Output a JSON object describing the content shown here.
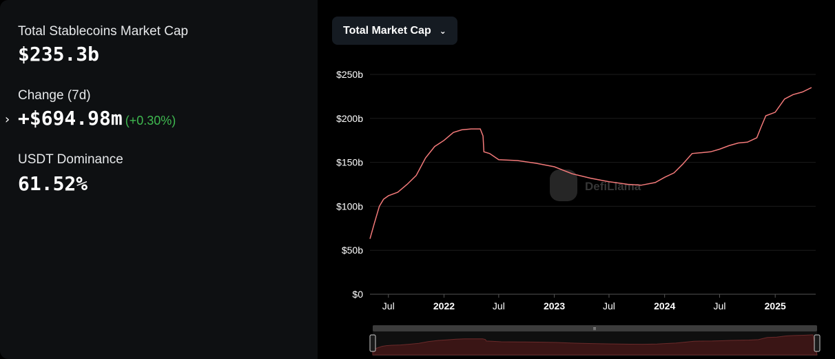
{
  "stats": {
    "market_cap_label": "Total Stablecoins Market Cap",
    "market_cap_value": "$235.3b",
    "change_label": "Change (7d)",
    "change_value": "+$694.98m",
    "change_pct": "(+0.30%)",
    "dominance_label": "USDT Dominance",
    "dominance_value": "61.52%"
  },
  "dropdown": {
    "label": "Total Market Cap"
  },
  "watermark": "DefiLlama",
  "colors": {
    "line": "#f47a7a",
    "positive": "#3fb950",
    "panel": "#0e1012"
  },
  "chart_data": {
    "type": "line",
    "x_unit": "date",
    "xlim": [
      "2021-05-01",
      "2025-05-15"
    ],
    "ylim": [
      0,
      250
    ],
    "y_ticks": [
      {
        "value": 0,
        "label": "$0"
      },
      {
        "value": 50,
        "label": "$50b"
      },
      {
        "value": 100,
        "label": "$100b"
      },
      {
        "value": 150,
        "label": "$150b"
      },
      {
        "value": 200,
        "label": "$200b"
      },
      {
        "value": 250,
        "label": "$250b"
      }
    ],
    "x_ticks": [
      {
        "date": "2021-07-01",
        "label": "Jul",
        "bold": false
      },
      {
        "date": "2022-01-01",
        "label": "2022",
        "bold": true
      },
      {
        "date": "2022-07-01",
        "label": "Jul",
        "bold": false
      },
      {
        "date": "2023-01-01",
        "label": "2023",
        "bold": true
      },
      {
        "date": "2023-07-01",
        "label": "Jul",
        "bold": false
      },
      {
        "date": "2024-01-01",
        "label": "2024",
        "bold": true
      },
      {
        "date": "2024-07-01",
        "label": "Jul",
        "bold": false
      },
      {
        "date": "2025-01-01",
        "label": "2025",
        "bold": true
      }
    ],
    "grid": true,
    "series": [
      {
        "values": [
          [
            "2021-05-01",
            63
          ],
          [
            "2021-05-15",
            80
          ],
          [
            "2021-06-01",
            100
          ],
          [
            "2021-06-15",
            108
          ],
          [
            "2021-07-01",
            112
          ],
          [
            "2021-08-01",
            116
          ],
          [
            "2021-09-01",
            125
          ],
          [
            "2021-10-01",
            135
          ],
          [
            "2021-11-01",
            155
          ],
          [
            "2021-12-01",
            168
          ],
          [
            "2022-01-01",
            175
          ],
          [
            "2022-02-01",
            184
          ],
          [
            "2022-03-01",
            187
          ],
          [
            "2022-04-01",
            188
          ],
          [
            "2022-05-01",
            188
          ],
          [
            "2022-05-10",
            180
          ],
          [
            "2022-05-13",
            162
          ],
          [
            "2022-06-01",
            160
          ],
          [
            "2022-07-01",
            153
          ],
          [
            "2022-09-01",
            152
          ],
          [
            "2022-11-01",
            149
          ],
          [
            "2023-01-01",
            145
          ],
          [
            "2023-03-01",
            137
          ],
          [
            "2023-05-01",
            132
          ],
          [
            "2023-07-01",
            128
          ],
          [
            "2023-09-01",
            125
          ],
          [
            "2023-10-15",
            124
          ],
          [
            "2023-12-01",
            127
          ],
          [
            "2024-01-01",
            133
          ],
          [
            "2024-02-01",
            138
          ],
          [
            "2024-03-01",
            148
          ],
          [
            "2024-04-01",
            160
          ],
          [
            "2024-05-01",
            161
          ],
          [
            "2024-06-01",
            162
          ],
          [
            "2024-07-01",
            165
          ],
          [
            "2024-08-01",
            169
          ],
          [
            "2024-09-01",
            172
          ],
          [
            "2024-10-01",
            173
          ],
          [
            "2024-11-01",
            178
          ],
          [
            "2024-11-15",
            190
          ],
          [
            "2024-12-01",
            203
          ],
          [
            "2025-01-01",
            207
          ],
          [
            "2025-02-01",
            222
          ],
          [
            "2025-03-01",
            227
          ],
          [
            "2025-04-01",
            230
          ],
          [
            "2025-05-01",
            235
          ]
        ]
      }
    ]
  }
}
